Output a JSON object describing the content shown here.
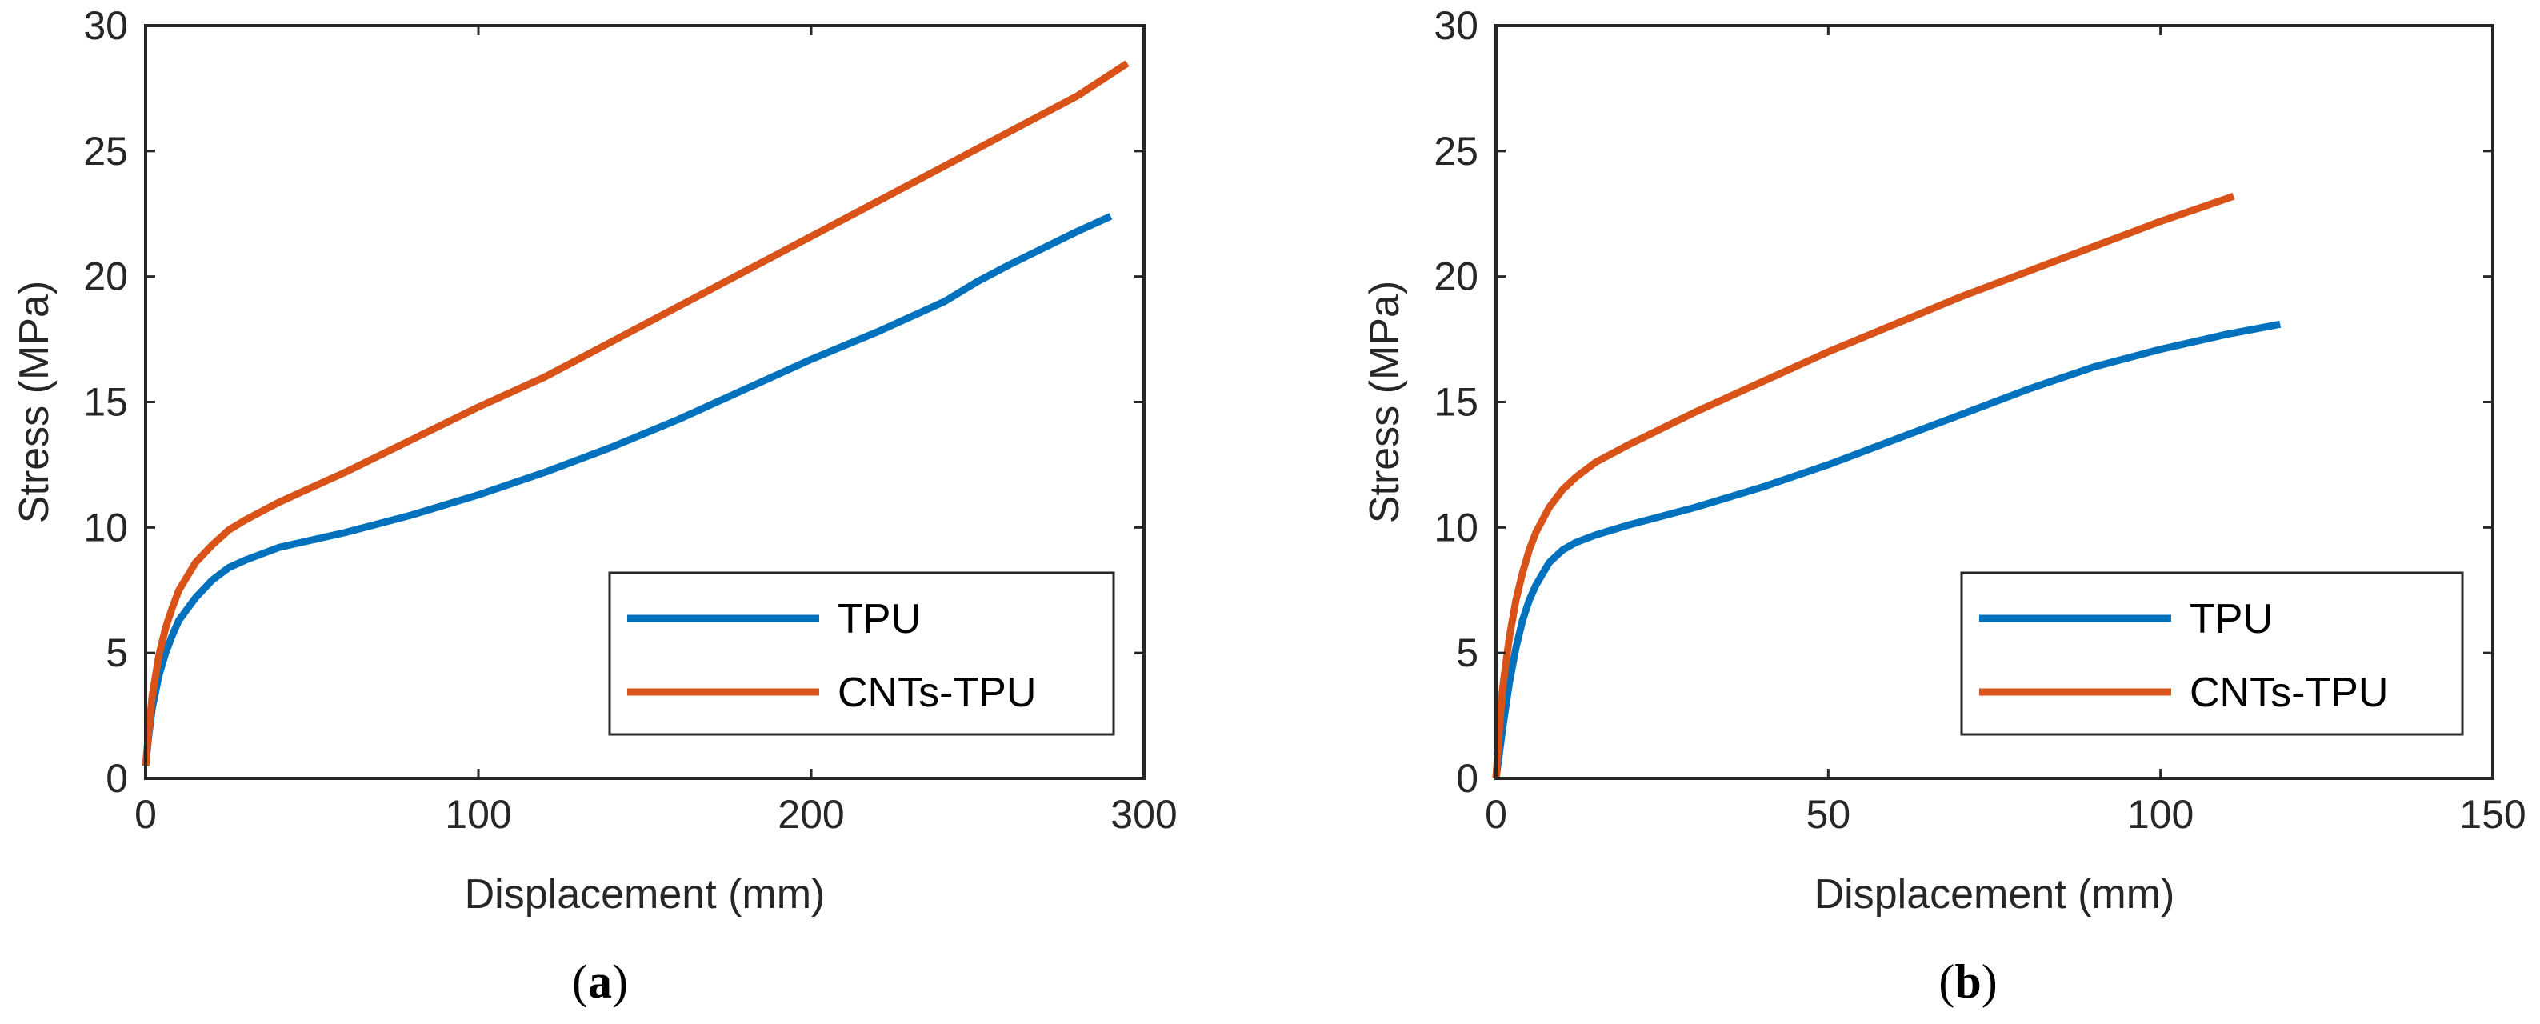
{
  "chart_data": [
    {
      "type": "line",
      "caption_open": "(",
      "caption_letter": "a",
      "caption_close": ")",
      "xlabel": "Displacement (mm)",
      "ylabel": "Stress (MPa)",
      "xlim": [
        0,
        300
      ],
      "ylim": [
        0,
        30
      ],
      "xticks": [
        "0",
        "100",
        "200",
        "300"
      ],
      "yticks": [
        "0",
        "5",
        "10",
        "15",
        "20",
        "25",
        "30"
      ],
      "grid": false,
      "legend_position": "bottom-right",
      "series": [
        {
          "name": "TPU",
          "color": "#0072BD",
          "x": [
            0,
            1,
            2,
            4,
            6,
            8,
            10,
            15,
            20,
            25,
            30,
            40,
            50,
            60,
            80,
            100,
            120,
            140,
            160,
            180,
            200,
            220,
            240,
            250,
            260,
            280,
            290
          ],
          "y": [
            0.5,
            1.8,
            2.8,
            4.1,
            5.0,
            5.7,
            6.3,
            7.2,
            7.9,
            8.4,
            8.7,
            9.2,
            9.5,
            9.8,
            10.5,
            11.3,
            12.2,
            13.2,
            14.3,
            15.5,
            16.7,
            17.8,
            19.0,
            19.8,
            20.5,
            21.8,
            22.4
          ]
        },
        {
          "name": "CNTs-TPU",
          "color": "#D95319",
          "x": [
            0,
            1,
            2,
            4,
            6,
            8,
            10,
            15,
            20,
            25,
            30,
            40,
            50,
            60,
            80,
            100,
            120,
            140,
            160,
            180,
            200,
            220,
            240,
            260,
            280,
            295
          ],
          "y": [
            0.5,
            2.0,
            3.3,
            4.9,
            6.0,
            6.8,
            7.5,
            8.6,
            9.3,
            9.9,
            10.3,
            11.0,
            11.6,
            12.2,
            13.5,
            14.8,
            16.0,
            17.4,
            18.8,
            20.2,
            21.6,
            23.0,
            24.4,
            25.8,
            27.2,
            28.5
          ]
        }
      ]
    },
    {
      "type": "line",
      "caption_open": "(",
      "caption_letter": "b",
      "caption_close": ")",
      "xlabel": "Displacement (mm)",
      "ylabel": "Stress (MPa)",
      "xlim": [
        0,
        150
      ],
      "ylim": [
        0,
        30
      ],
      "xticks": [
        "0",
        "50",
        "100",
        "150"
      ],
      "yticks": [
        "0",
        "5",
        "10",
        "15",
        "20",
        "25",
        "30"
      ],
      "grid": false,
      "legend_position": "bottom-right",
      "series": [
        {
          "name": "TPU",
          "color": "#0072BD",
          "x": [
            0,
            0.5,
            1,
            2,
            3,
            4,
            5,
            6,
            8,
            10,
            12,
            15,
            20,
            30,
            40,
            50,
            60,
            70,
            80,
            90,
            100,
            110,
            118
          ],
          "y": [
            0,
            1.0,
            2.0,
            3.8,
            5.2,
            6.3,
            7.1,
            7.7,
            8.6,
            9.1,
            9.4,
            9.7,
            10.1,
            10.8,
            11.6,
            12.5,
            13.5,
            14.5,
            15.5,
            16.4,
            17.1,
            17.7,
            18.1
          ]
        },
        {
          "name": "CNTs-TPU",
          "color": "#D95319",
          "x": [
            0,
            0.5,
            1,
            2,
            3,
            4,
            5,
            6,
            8,
            10,
            12,
            15,
            20,
            30,
            40,
            50,
            60,
            70,
            80,
            90,
            100,
            111
          ],
          "y": [
            0,
            2.0,
            3.6,
            5.6,
            7.1,
            8.2,
            9.1,
            9.8,
            10.8,
            11.5,
            12.0,
            12.6,
            13.3,
            14.6,
            15.8,
            17.0,
            18.1,
            19.2,
            20.2,
            21.2,
            22.2,
            23.2
          ]
        }
      ]
    }
  ]
}
